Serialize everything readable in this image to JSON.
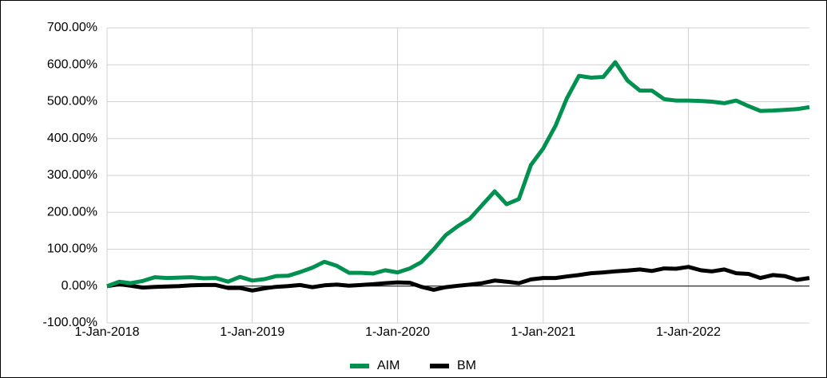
{
  "chart_data": {
    "type": "line",
    "x": [
      "2018-01-01",
      "2018-02-01",
      "2018-03-01",
      "2018-04-01",
      "2018-05-01",
      "2018-06-01",
      "2018-07-01",
      "2018-08-01",
      "2018-09-01",
      "2018-10-01",
      "2018-11-01",
      "2018-12-01",
      "2019-01-01",
      "2019-02-01",
      "2019-03-01",
      "2019-04-01",
      "2019-05-01",
      "2019-06-01",
      "2019-07-01",
      "2019-08-01",
      "2019-09-01",
      "2019-10-01",
      "2019-11-01",
      "2019-12-01",
      "2020-01-01",
      "2020-02-01",
      "2020-03-01",
      "2020-04-01",
      "2020-05-01",
      "2020-06-01",
      "2020-07-01",
      "2020-08-01",
      "2020-09-01",
      "2020-10-01",
      "2020-11-01",
      "2020-12-01",
      "2021-01-01",
      "2021-02-01",
      "2021-03-01",
      "2021-04-01",
      "2021-05-01",
      "2021-06-01",
      "2021-07-01",
      "2021-08-01",
      "2021-09-01",
      "2021-10-01",
      "2021-11-01",
      "2021-12-01",
      "2022-01-01",
      "2022-02-01",
      "2022-03-01",
      "2022-04-01",
      "2022-05-01",
      "2022-06-01",
      "2022-07-01",
      "2022-08-01",
      "2022-09-01",
      "2022-10-01",
      "2022-11-01"
    ],
    "series": [
      {
        "name": "AIM",
        "color": "#009150",
        "values": [
          0,
          12,
          8,
          14,
          24,
          22,
          23,
          24,
          21,
          22,
          12,
          25,
          15,
          19,
          27,
          28,
          38,
          50,
          66,
          55,
          36,
          36,
          34,
          43,
          37,
          48,
          65,
          100,
          138,
          163,
          183,
          220,
          257,
          222,
          236,
          328,
          373,
          435,
          508,
          570,
          565,
          567,
          607,
          557,
          530,
          530,
          507,
          503,
          503,
          502,
          500,
          496,
          503,
          488,
          475,
          476,
          478,
          480,
          485
        ]
      },
      {
        "name": "BM",
        "color": "#000000",
        "values": [
          0,
          5,
          1,
          -4,
          -2,
          -1,
          0,
          2,
          3,
          3,
          -5,
          -5,
          -12,
          -6,
          -2,
          0,
          3,
          -3,
          2,
          4,
          1,
          3,
          5,
          8,
          10,
          9,
          -2,
          -10,
          -3,
          1,
          4,
          8,
          15,
          12,
          8,
          18,
          22,
          22,
          26,
          30,
          35,
          37,
          40,
          42,
          45,
          41,
          48,
          47,
          52,
          43,
          40,
          45,
          35,
          33,
          22,
          30,
          27,
          17,
          22
        ]
      }
    ],
    "xlim": [
      "2018-01-01",
      "2022-11-01"
    ],
    "xticks": [
      {
        "value": "2018-01-01",
        "label": "1-Jan-2018"
      },
      {
        "value": "2019-01-01",
        "label": "1-Jan-2019"
      },
      {
        "value": "2020-01-01",
        "label": "1-Jan-2020"
      },
      {
        "value": "2021-01-01",
        "label": "1-Jan-2021"
      },
      {
        "value": "2022-01-01",
        "label": "1-Jan-2022"
      }
    ],
    "ylim": [
      -100,
      700
    ],
    "yticks": [
      {
        "value": -100,
        "label": "-100.00%"
      },
      {
        "value": 0,
        "label": "0.00%"
      },
      {
        "value": 100,
        "label": "100.00%"
      },
      {
        "value": 200,
        "label": "200.00%"
      },
      {
        "value": 300,
        "label": "300.00%"
      },
      {
        "value": 400,
        "label": "400.00%"
      },
      {
        "value": 500,
        "label": "500.00%"
      },
      {
        "value": 600,
        "label": "600.00%"
      },
      {
        "value": 700,
        "label": "700.00%"
      }
    ],
    "grid": true,
    "legend": "bottom"
  }
}
